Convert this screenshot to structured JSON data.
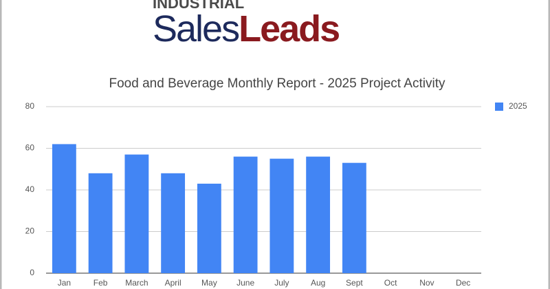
{
  "header": {
    "logo_top": "INDUSTRIAL",
    "logo_left": "Sales",
    "logo_right": "Leads"
  },
  "chart_data": {
    "type": "bar",
    "title": "Food and Beverage Monthly Report - 2025 Project Activity",
    "categories": [
      "Jan",
      "Feb",
      "March",
      "April",
      "May",
      "June",
      "July",
      "Aug",
      "Sept",
      "Oct",
      "Nov",
      "Dec"
    ],
    "series": [
      {
        "name": "2025",
        "color": "#4285f4",
        "values": [
          62,
          48,
          57,
          48,
          43,
          56,
          55,
          56,
          53,
          null,
          null,
          null
        ]
      }
    ],
    "ylim": [
      0,
      80
    ],
    "yticks": [
      0,
      20,
      40,
      60,
      80
    ],
    "grid": true,
    "legend": "right"
  }
}
